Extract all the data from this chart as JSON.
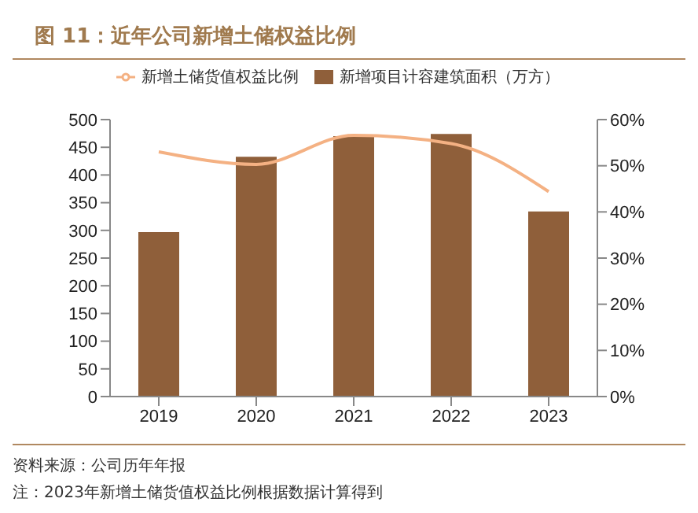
{
  "chart_data": {
    "type": "bar",
    "title": "图 11：近年公司新增土储权益比例",
    "categories": [
      "2019",
      "2020",
      "2021",
      "2022",
      "2023"
    ],
    "series": [
      {
        "name": "新增项目计容建筑面积（万方）",
        "color": "#8f5f3a",
        "values": [
          297,
          433,
          470,
          474,
          334
        ]
      },
      {
        "name": "新增土储货值权益比例",
        "type": "line",
        "axis": "y2",
        "color": "#f4b183",
        "values": [
          53.0,
          50.3,
          56.6,
          54.8,
          44.4
        ]
      }
    ],
    "ylim": [
      0,
      500
    ],
    "yticks": [
      0,
      50,
      100,
      150,
      200,
      250,
      300,
      350,
      400,
      450,
      500
    ],
    "y2lim": [
      0,
      60
    ],
    "y2ticks": [
      {
        "value": 0,
        "label": "0%"
      },
      {
        "value": 10,
        "label": "10%"
      },
      {
        "value": 20,
        "label": "20%"
      },
      {
        "value": 30,
        "label": "30%"
      },
      {
        "value": 40,
        "label": "40%"
      },
      {
        "value": 50,
        "label": "50%"
      },
      {
        "value": 60,
        "label": "60%"
      }
    ],
    "legend": "top",
    "grid": false,
    "annotations": [
      "资料来源：公司历年年报",
      "注：2023年新增土储货值权益比例根据数据计算得到"
    ]
  }
}
